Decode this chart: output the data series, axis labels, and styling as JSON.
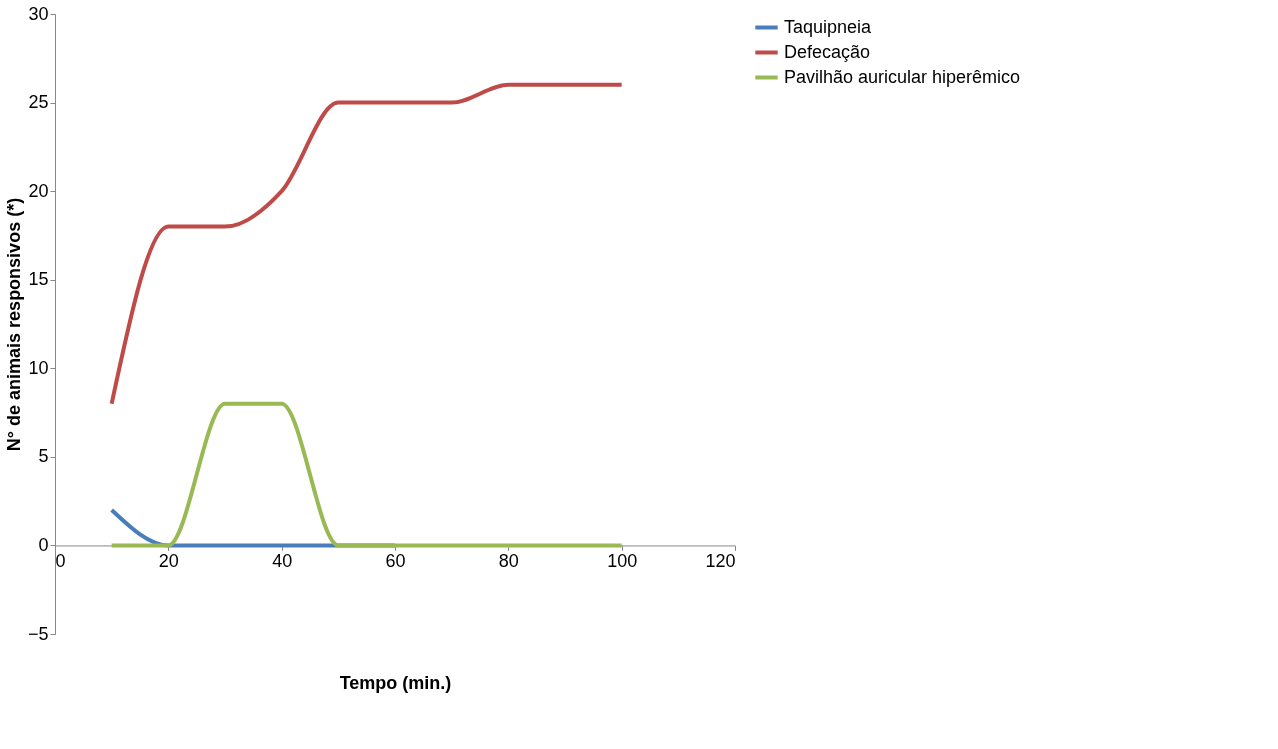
{
  "chart_data": {
    "type": "line",
    "xlabel": "Tempo (min.)",
    "ylabel": "N° de animais responsivos (*)",
    "x": [
      10,
      20,
      30,
      40,
      50,
      60,
      70,
      80,
      90,
      100
    ],
    "series": [
      {
        "name": "Taquipneia",
        "color": "#4a7ebb",
        "values": [
          2,
          0,
          0,
          0,
          0,
          0,
          null,
          null,
          null,
          null
        ]
      },
      {
        "name": "Defecação",
        "color": "#be4b48",
        "values": [
          8,
          18,
          18,
          20,
          25,
          25,
          25,
          26,
          26,
          26
        ]
      },
      {
        "name": "Pavilhão auricular hiperêmico",
        "color": "#98b954",
        "values": [
          0,
          0,
          8,
          8,
          0,
          0,
          0,
          0,
          0,
          0
        ]
      }
    ],
    "xlim": [
      0,
      120
    ],
    "xticks": [
      0,
      20,
      40,
      60,
      80,
      100,
      120
    ],
    "ylim": [
      -5,
      30
    ],
    "yticks": [
      -5,
      0,
      5,
      10,
      15,
      20,
      25,
      30
    ],
    "grid": false,
    "legend": "right",
    "marker": "none",
    "line_style": "solid"
  }
}
